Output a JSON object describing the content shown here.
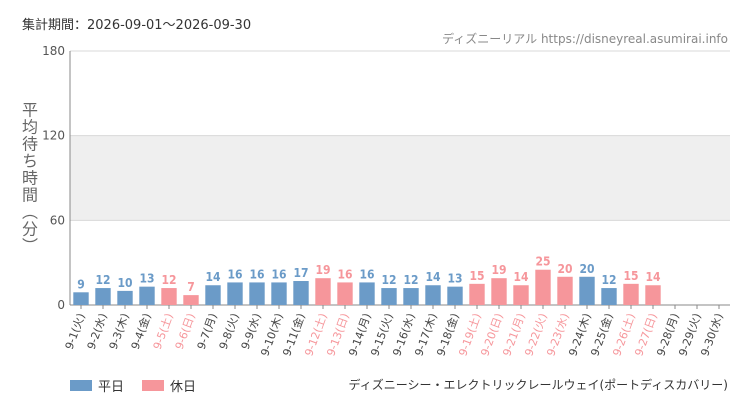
{
  "header": {
    "period": "集計期間：2026-09-01〜2026-09-30",
    "credit": "ディズニーリアル https://disneyreal.asumirai.info"
  },
  "footer": {
    "attraction": "ディズニーシー・エレクトリックレールウェイ(ポートディスカバリー)"
  },
  "colors": {
    "weekday": "#6b9bc8",
    "holiday": "#f6969b",
    "band": "#efefef",
    "grid": "#d8d8d8"
  },
  "chart_data": {
    "type": "bar",
    "ylabel": "平均待ち時間（分）",
    "ylim": [
      0,
      180
    ],
    "yticks": [
      0,
      60,
      120,
      180
    ],
    "categories": [
      "9-1(火)",
      "9-2(水)",
      "9-3(木)",
      "9-4(金)",
      "9-5(土)",
      "9-6(日)",
      "9-7(月)",
      "9-8(火)",
      "9-9(水)",
      "9-10(木)",
      "9-11(金)",
      "9-12(土)",
      "9-13(日)",
      "9-14(月)",
      "9-15(火)",
      "9-16(水)",
      "9-17(木)",
      "9-18(金)",
      "9-19(土)",
      "9-20(日)",
      "9-21(月)",
      "9-22(火)",
      "9-23(水)",
      "9-24(木)",
      "9-25(金)",
      "9-26(土)",
      "9-27(日)",
      "9-28(月)",
      "9-29(火)",
      "9-30(水)"
    ],
    "values": [
      9,
      12,
      10,
      13,
      12,
      7,
      14,
      16,
      16,
      16,
      17,
      19,
      16,
      16,
      12,
      12,
      14,
      13,
      15,
      19,
      14,
      25,
      20,
      20,
      12,
      15,
      14,
      null,
      null,
      null
    ],
    "day_type": [
      "weekday",
      "weekday",
      "weekday",
      "weekday",
      "holiday",
      "holiday",
      "weekday",
      "weekday",
      "weekday",
      "weekday",
      "weekday",
      "holiday",
      "holiday",
      "weekday",
      "weekday",
      "weekday",
      "weekday",
      "weekday",
      "holiday",
      "holiday",
      "holiday",
      "holiday",
      "holiday",
      "weekday",
      "weekday",
      "holiday",
      "holiday",
      "weekday",
      "weekday",
      "weekday"
    ],
    "legend": [
      {
        "key": "weekday",
        "label": "平日"
      },
      {
        "key": "holiday",
        "label": "休日"
      }
    ],
    "legend_position": "bottom-left",
    "grid": true
  }
}
